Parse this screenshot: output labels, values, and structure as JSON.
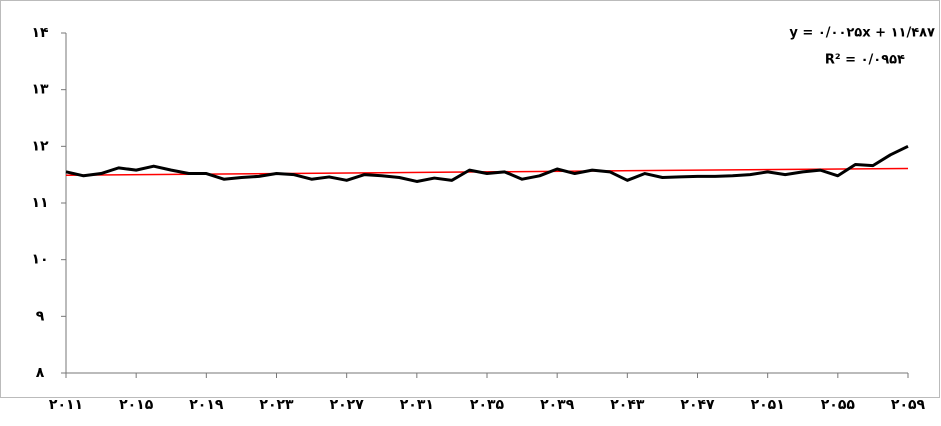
{
  "chart_data": {
    "type": "line",
    "x": [
      2011,
      2012,
      2013,
      2014,
      2015,
      2016,
      2017,
      2018,
      2019,
      2020,
      2021,
      2022,
      2023,
      2024,
      2025,
      2026,
      2027,
      2028,
      2029,
      2030,
      2031,
      2032,
      2033,
      2034,
      2035,
      2036,
      2037,
      2038,
      2039,
      2040,
      2041,
      2042,
      2043,
      2044,
      2045,
      2046,
      2047,
      2048,
      2049,
      2050,
      2051,
      2052,
      2053,
      2054,
      2055,
      2056,
      2057,
      2058,
      2059
    ],
    "values": [
      11.55,
      11.48,
      11.52,
      11.62,
      11.58,
      11.65,
      11.58,
      11.52,
      11.52,
      11.42,
      11.45,
      11.47,
      11.52,
      11.5,
      11.42,
      11.46,
      11.4,
      11.5,
      11.48,
      11.45,
      11.38,
      11.44,
      11.4,
      11.58,
      11.52,
      11.55,
      11.42,
      11.48,
      11.6,
      11.52,
      11.58,
      11.55,
      11.4,
      11.52,
      11.45,
      11.46,
      11.47,
      11.47,
      11.48,
      11.5,
      11.55,
      11.5,
      11.55,
      11.58,
      11.48,
      11.68,
      11.66,
      11.85,
      12.0
    ],
    "color": "#000000",
    "xlim": [
      2011,
      2059
    ],
    "xticks": [
      {
        "value": 2011,
        "label": "۲۰۱۱"
      },
      {
        "value": 2015,
        "label": "۲۰۱۵"
      },
      {
        "value": 2019,
        "label": "۲۰۱۹"
      },
      {
        "value": 2023,
        "label": "۲۰۲۳"
      },
      {
        "value": 2027,
        "label": "۲۰۲۷"
      },
      {
        "value": 2031,
        "label": "۲۰۳۱"
      },
      {
        "value": 2035,
        "label": "۲۰۳۵"
      },
      {
        "value": 2039,
        "label": "۲۰۳۹"
      },
      {
        "value": 2043,
        "label": "۲۰۴۳"
      },
      {
        "value": 2047,
        "label": "۲۰۴۷"
      },
      {
        "value": 2051,
        "label": "۲۰۵۱"
      },
      {
        "value": 2055,
        "label": "۲۰۵۵"
      },
      {
        "value": 2059,
        "label": "۲۰۵۹"
      }
    ],
    "ylim": [
      8,
      14
    ],
    "yticks": [
      {
        "value": 8,
        "label": "۸"
      },
      {
        "value": 9,
        "label": "۹"
      },
      {
        "value": 10,
        "label": "۱۰"
      },
      {
        "value": 11,
        "label": "۱۱"
      },
      {
        "value": 12,
        "label": "۱۲"
      },
      {
        "value": 13,
        "label": "۱۳"
      },
      {
        "value": 14,
        "label": "۱۴"
      }
    ],
    "trendline": {
      "slope": 0.0025,
      "intercept": 11.487,
      "color": "#ff0000",
      "equation": "y = ۰/۰۰۲۵x + ۱۱/۴۸۷",
      "r_squared": "R² = ۰/۰۹۵۴"
    }
  }
}
